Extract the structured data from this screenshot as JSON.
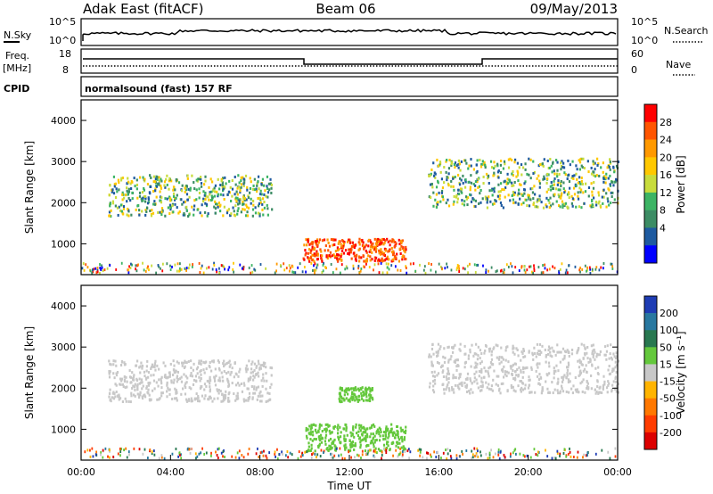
{
  "header": {
    "station": "Adak East (fitACF)",
    "beam": "Beam 06",
    "date": "09/May/2013"
  },
  "strip_panels": {
    "nsky_label": "N.Sky",
    "nsky_ticks": [
      "10^5",
      "10^0"
    ],
    "nsearch_label": "N.Search",
    "nsearch_ticks": [
      "10^5",
      "10^0"
    ],
    "freq_label": "Freq.",
    "freq_unit": "[MHz]",
    "freq_ticks": [
      "18",
      "8"
    ],
    "nave_label": "Nave",
    "nave_ticks": [
      "60",
      "0"
    ],
    "cpid_label": "CPID",
    "cpid_value": "normalsound (fast) 157 RF"
  },
  "chart_data": [
    {
      "type": "heatmap",
      "name": "power",
      "ylabel": "Slant Range [km]",
      "xlabel": "",
      "ylim": [
        250,
        4500
      ],
      "y_ticks": [
        "1000",
        "2000",
        "3000",
        "4000"
      ],
      "colorbar_label": "Power [dB]",
      "colorbar_ticks": [
        "28",
        "24",
        "20",
        "16",
        "12",
        "8",
        "4"
      ],
      "colorbar_colors": [
        "#ff0000",
        "#ff5500",
        "#ff9900",
        "#ffc800",
        "#c8dc3c",
        "#3cb464",
        "#3c8c64",
        "#1e5aa0",
        "#0000ff"
      ],
      "bands": [
        {
          "t": [
            1.2,
            8.5
          ],
          "r": [
            1700,
            2700
          ],
          "level": "mid"
        },
        {
          "t": [
            9.9,
            14.5
          ],
          "r": [
            600,
            1150
          ],
          "level": "high"
        },
        {
          "t": [
            15.5,
            24.0
          ],
          "r": [
            1900,
            3100
          ],
          "level": "mid"
        }
      ]
    },
    {
      "type": "heatmap",
      "name": "velocity",
      "ylabel": "Slant Range [km]",
      "xlabel": "Time UT",
      "ylim": [
        250,
        4500
      ],
      "y_ticks": [
        "1000",
        "2000",
        "3000",
        "4000"
      ],
      "x_ticks": [
        "00:00",
        "04:00",
        "08:00",
        "12:00",
        "16:00",
        "20:00",
        "00:00"
      ],
      "colorbar_label": "Velocity [m s⁻¹]",
      "colorbar_ticks": [
        "200",
        "100",
        "50",
        "15",
        "-15",
        "-50",
        "-100",
        "-200"
      ],
      "colorbar_colors": [
        "#1e3cb4",
        "#2878a0",
        "#287850",
        "#64c83c",
        "#c8c8c8",
        "#ffb400",
        "#ff7800",
        "#ff3c00",
        "#dc0000"
      ],
      "bands": [
        {
          "t": [
            1.2,
            8.5
          ],
          "r": [
            1700,
            2700
          ],
          "level": "ground"
        },
        {
          "t": [
            10.0,
            14.5
          ],
          "r": [
            500,
            1150
          ],
          "level": "positive"
        },
        {
          "t": [
            11.5,
            13.0
          ],
          "r": [
            1700,
            2050
          ],
          "level": "positive"
        },
        {
          "t": [
            15.5,
            24.0
          ],
          "r": [
            1900,
            3100
          ],
          "level": "ground"
        }
      ]
    }
  ]
}
